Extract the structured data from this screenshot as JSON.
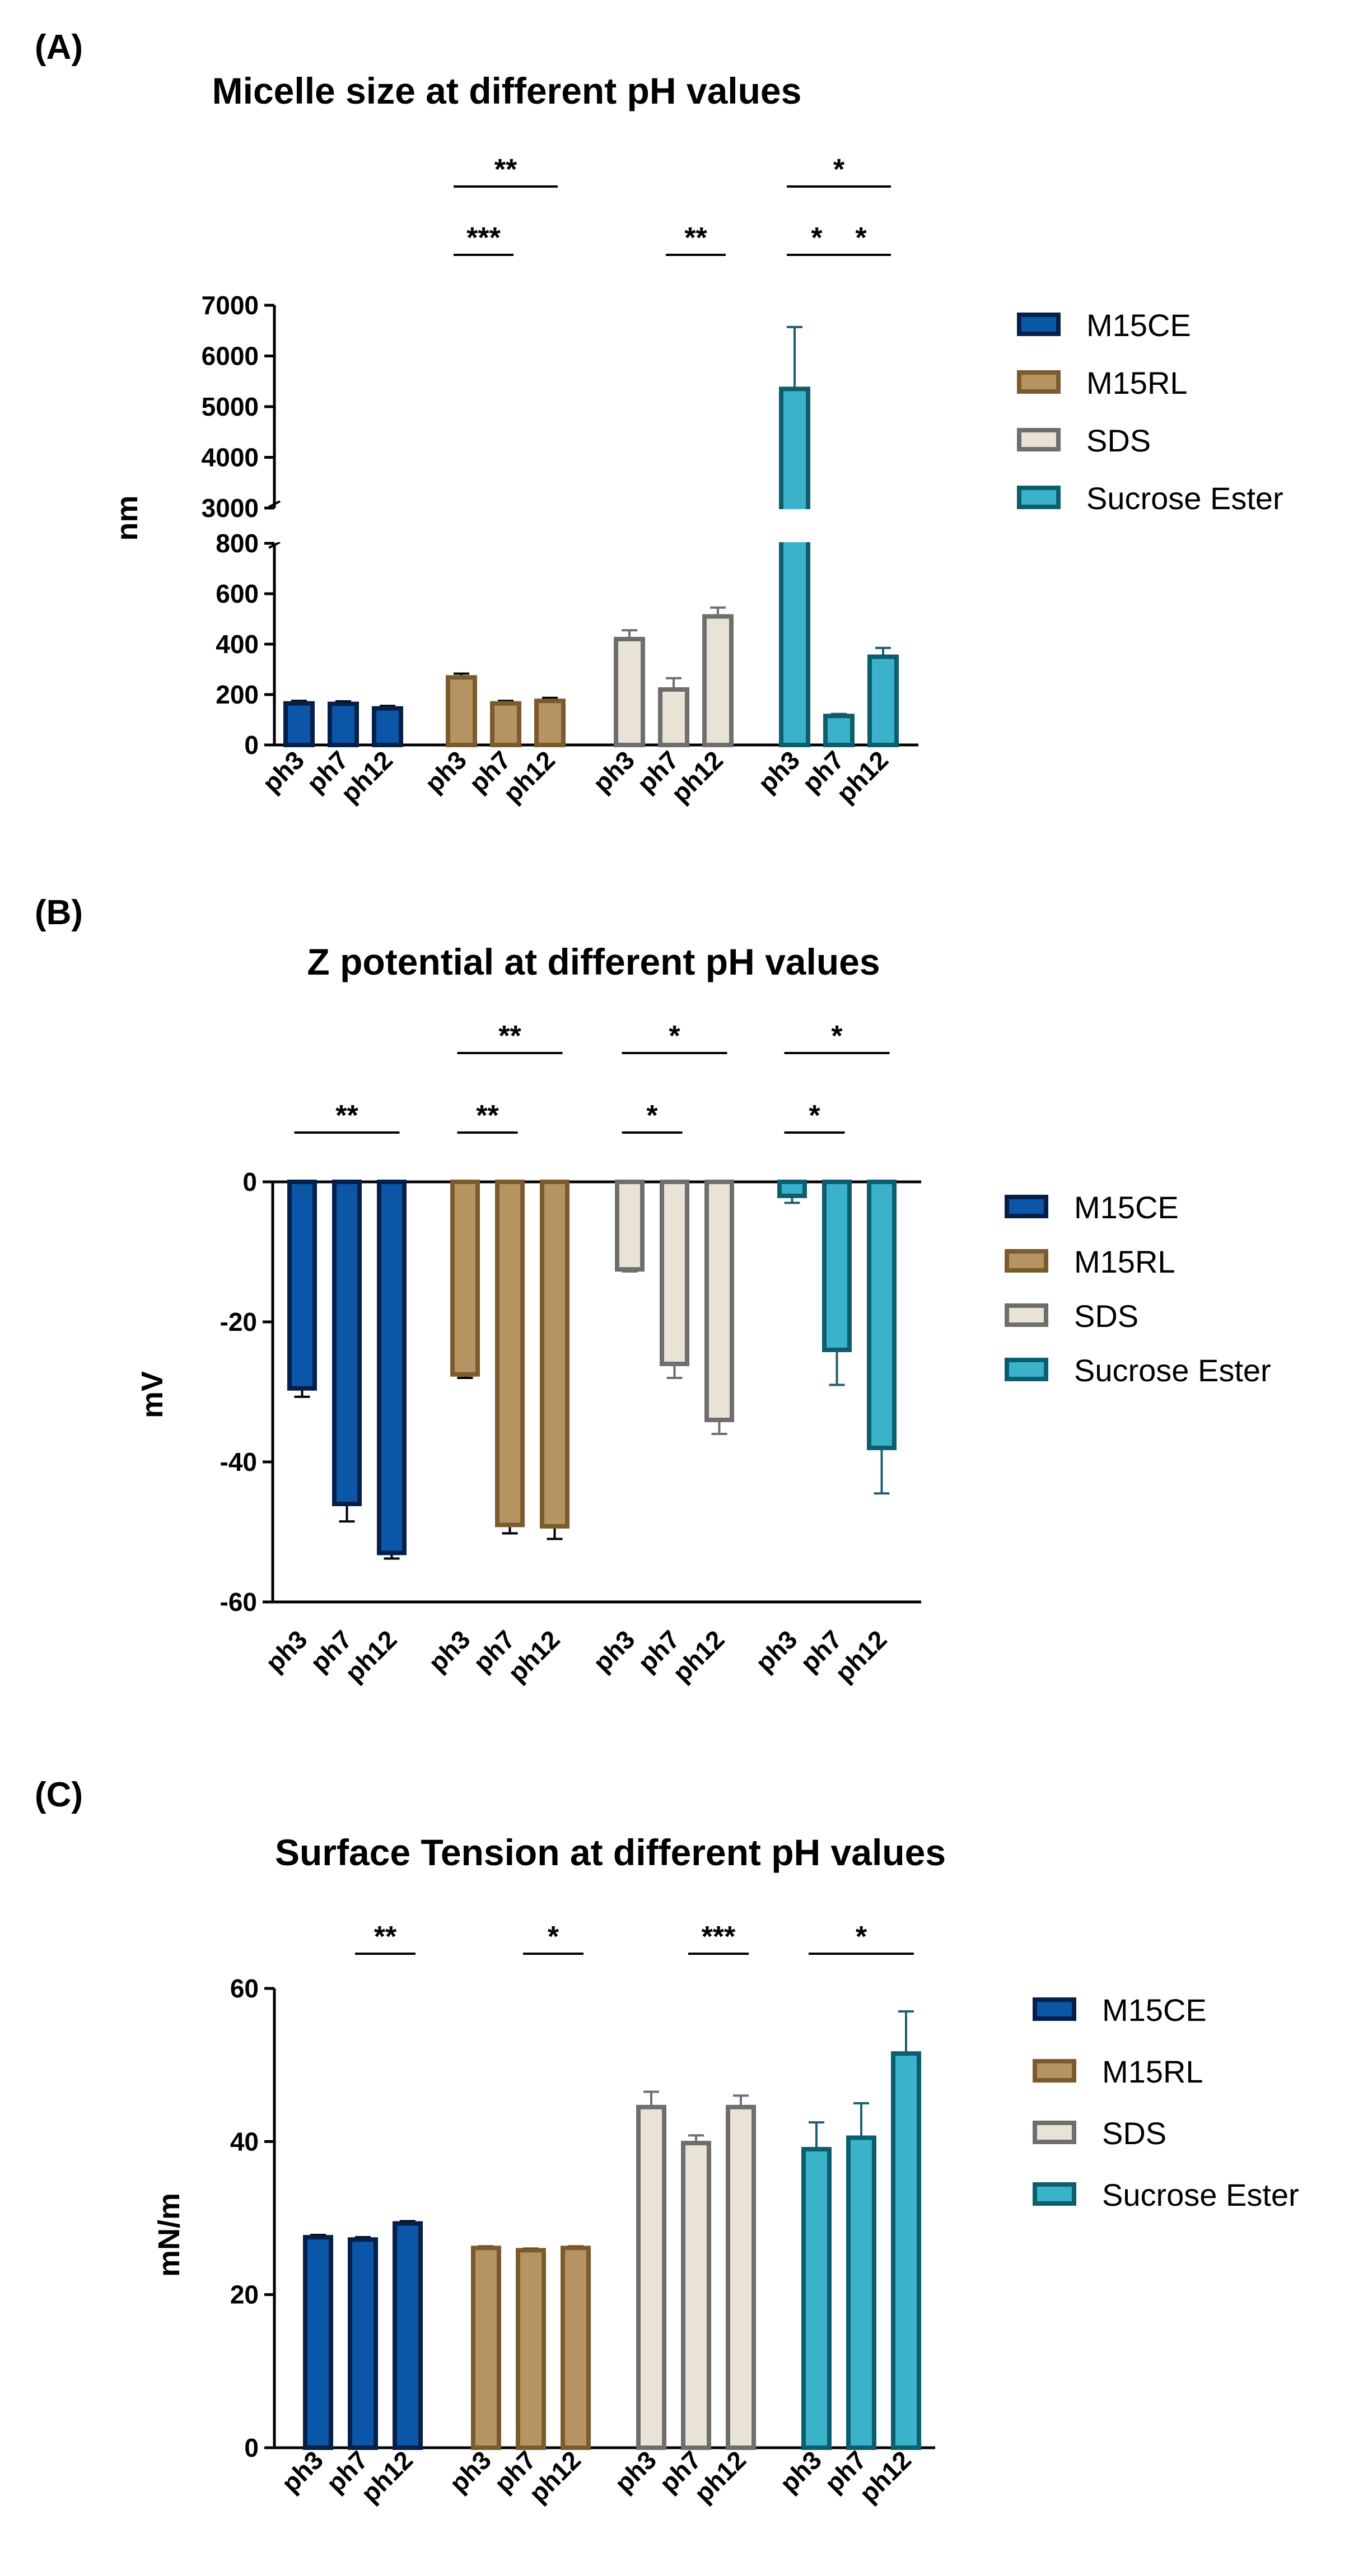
{
  "figure": {
    "legend_labels": [
      "M15CE",
      "M15RL",
      "SDS",
      "Sucrose Ester"
    ],
    "colors": {
      "M15CE": {
        "fill": "#0b56a6",
        "stroke": "#04204a",
        "error": "#000000"
      },
      "M15RL": {
        "fill": "#b69363",
        "stroke": "#7b5b2e",
        "error": "#000000"
      },
      "SDS": {
        "fill": "#e9e3d6",
        "stroke": "#6e6e6e",
        "error": "#6e6e6e"
      },
      "Sucrose Ester": {
        "fill": "#39b2ca",
        "stroke": "#0c5e6e",
        "error": "#1d5f6c"
      }
    }
  },
  "chart_data": [
    {
      "type": "bar",
      "panel_label": "(A)",
      "title": "Micelle size at different pH values",
      "xlabel": "",
      "ylabel": "nm",
      "categories": [
        "ph3",
        "ph7",
        "ph12"
      ],
      "series": [
        {
          "name": "M15CE",
          "values": [
            165,
            163,
            145
          ],
          "errors": [
            10,
            10,
            10
          ]
        },
        {
          "name": "M15RL",
          "values": [
            268,
            165,
            175
          ],
          "errors": [
            15,
            10,
            12
          ]
        },
        {
          "name": "SDS",
          "values": [
            420,
            220,
            510
          ],
          "errors": [
            35,
            45,
            35
          ]
        },
        {
          "name": "Sucrose Ester",
          "values": [
            5350,
            115,
            350
          ],
          "errors": [
            1220,
            8,
            35
          ]
        }
      ],
      "y_axis_break": {
        "lower_range": [
          0,
          800
        ],
        "upper_range": [
          3000,
          7000
        ]
      },
      "yticks": [
        0,
        200,
        400,
        600,
        800,
        3000,
        4000,
        5000,
        6000,
        7000
      ],
      "significance": [
        {
          "group": "M15RL",
          "from": "ph3",
          "to": "ph12",
          "label": "**",
          "level": 2
        },
        {
          "group": "M15RL",
          "from": "ph3",
          "to": "ph7",
          "label": "***",
          "level": 1
        },
        {
          "group": "SDS",
          "from": "ph7",
          "to": "ph12",
          "label": "**",
          "level": 1
        },
        {
          "group": "Sucrose Ester",
          "from": "ph3",
          "to": "ph12",
          "label": "*",
          "level": 2
        },
        {
          "group": "Sucrose Ester",
          "from": "ph3",
          "to": "ph7",
          "label": "*",
          "level": 1
        },
        {
          "group": "Sucrose Ester",
          "from": "ph7",
          "to": "ph12",
          "label": "*",
          "level": 1
        }
      ]
    },
    {
      "type": "bar",
      "panel_label": "(B)",
      "title": "Z potential at different pH values",
      "xlabel": "",
      "ylabel": "mV",
      "ylim": [
        -60,
        0
      ],
      "yticks": [
        -60,
        -40,
        -20,
        0
      ],
      "categories": [
        "ph3",
        "ph7",
        "ph12"
      ],
      "series": [
        {
          "name": "M15CE",
          "values": [
            -29.5,
            -46,
            -53
          ],
          "errors": [
            1.2,
            2.5,
            0.8
          ]
        },
        {
          "name": "M15RL",
          "values": [
            -27.5,
            -49,
            -49.2
          ],
          "errors": [
            0.5,
            1.2,
            1.8
          ]
        },
        {
          "name": "SDS",
          "values": [
            -12.5,
            -26,
            -34
          ],
          "errors": [
            0.3,
            2,
            2
          ]
        },
        {
          "name": "Sucrose Ester",
          "values": [
            -2,
            -24,
            -38
          ],
          "errors": [
            1,
            5,
            6.5
          ]
        }
      ],
      "significance": [
        {
          "group": "M15CE",
          "from": "ph3",
          "to": "ph12",
          "label": "**",
          "level": 1
        },
        {
          "group": "M15RL",
          "from": "ph3",
          "to": "ph12",
          "label": "**",
          "level": 2
        },
        {
          "group": "M15RL",
          "from": "ph3",
          "to": "ph7",
          "label": "**",
          "level": 1
        },
        {
          "group": "SDS",
          "from": "ph3",
          "to": "ph12",
          "label": "*",
          "level": 2
        },
        {
          "group": "SDS",
          "from": "ph3",
          "to": "ph7",
          "label": "*",
          "level": 1
        },
        {
          "group": "Sucrose Ester",
          "from": "ph3",
          "to": "ph12",
          "label": "*",
          "level": 2
        },
        {
          "group": "Sucrose Ester",
          "from": "ph3",
          "to": "ph7",
          "label": "*",
          "level": 1
        }
      ]
    },
    {
      "type": "bar",
      "panel_label": "(C)",
      "title": "Surface Tension at different pH values",
      "xlabel": "",
      "ylabel": "mN/m",
      "ylim": [
        0,
        60
      ],
      "yticks": [
        0,
        20,
        40,
        60
      ],
      "categories": [
        "ph3",
        "ph7",
        "ph12"
      ],
      "series": [
        {
          "name": "M15CE",
          "values": [
            27.5,
            27.2,
            29.3
          ],
          "errors": [
            0.3,
            0.3,
            0.3
          ]
        },
        {
          "name": "M15RL",
          "values": [
            26.1,
            25.8,
            26.1
          ],
          "errors": [
            0.2,
            0.2,
            0.2
          ]
        },
        {
          "name": "SDS",
          "values": [
            44.5,
            39.8,
            44.5
          ],
          "errors": [
            2,
            1,
            1.5
          ]
        },
        {
          "name": "Sucrose Ester",
          "values": [
            39,
            40.5,
            51.5
          ],
          "errors": [
            3.5,
            4.5,
            5.5
          ]
        }
      ],
      "significance": [
        {
          "group": "M15CE",
          "from": "ph7",
          "to": "ph12",
          "label": "**",
          "level": 1
        },
        {
          "group": "M15RL",
          "from": "ph7",
          "to": "ph12",
          "label": "*",
          "level": 1
        },
        {
          "group": "SDS",
          "from": "ph7",
          "to": "ph12",
          "label": "***",
          "level": 1
        },
        {
          "group": "Sucrose Ester",
          "from": "ph3",
          "to": "ph12",
          "label": "*",
          "level": 1
        }
      ]
    }
  ]
}
